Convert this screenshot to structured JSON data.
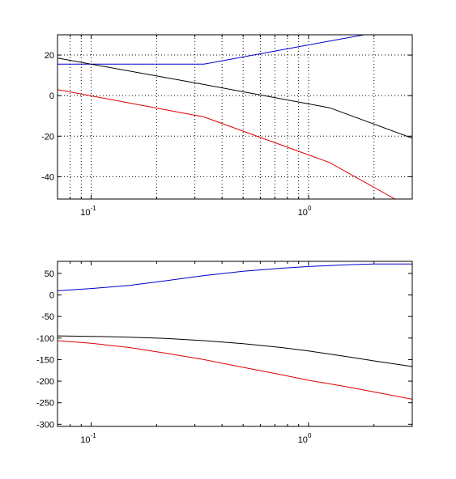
{
  "chart_data": [
    {
      "type": "line",
      "x_scale": "log",
      "xlim": [
        0.07,
        3.0
      ],
      "ylim": [
        -51,
        30
      ],
      "grid": true,
      "x_ticks": [
        {
          "value": 0.1,
          "base": "10",
          "exp": "-1"
        },
        {
          "value": 1.0,
          "base": "10",
          "exp": "0"
        }
      ],
      "y_ticks": [
        {
          "value": 20,
          "label": "20"
        },
        {
          "value": 0,
          "label": "0"
        },
        {
          "value": -20,
          "label": "-20"
        },
        {
          "value": -40,
          "label": "-40"
        }
      ],
      "series": [
        {
          "color": "#0000cc",
          "points": [
            [
              0.07,
              15.5
            ],
            [
              0.1,
              15.5
            ],
            [
              0.33,
              15.5
            ],
            [
              1.0,
              25.0
            ],
            [
              1.8,
              30.0
            ]
          ]
        },
        {
          "color": "#000000",
          "points": [
            [
              0.07,
              18.5
            ],
            [
              0.33,
              5.5
            ],
            [
              1.25,
              -6.0
            ],
            [
              3.0,
              -21.0
            ]
          ]
        },
        {
          "color": "#dd0000",
          "points": [
            [
              0.07,
              3.0
            ],
            [
              0.33,
              -10.5
            ],
            [
              1.25,
              -33.0
            ],
            [
              2.5,
              -51.0
            ]
          ]
        }
      ]
    },
    {
      "type": "line",
      "x_scale": "log",
      "xlim": [
        0.07,
        3.0
      ],
      "ylim": [
        -305,
        78
      ],
      "grid": false,
      "x_ticks": [
        {
          "value": 0.1,
          "base": "10",
          "exp": "-1"
        },
        {
          "value": 1.0,
          "base": "10",
          "exp": "0"
        }
      ],
      "y_ticks": [
        {
          "value": 50,
          "label": "50"
        },
        {
          "value": 0,
          "label": "0"
        },
        {
          "value": -50,
          "label": "-50"
        },
        {
          "value": -100,
          "label": "-100"
        },
        {
          "value": -150,
          "label": "-150"
        },
        {
          "value": -200,
          "label": "-200"
        },
        {
          "value": -250,
          "label": "-250"
        },
        {
          "value": -300,
          "label": "-300"
        }
      ],
      "series": [
        {
          "color": "#0000cc",
          "points": [
            [
              0.07,
              10
            ],
            [
              0.1,
              15
            ],
            [
              0.15,
              22
            ],
            [
              0.22,
              33
            ],
            [
              0.33,
              45
            ],
            [
              0.5,
              55
            ],
            [
              0.75,
              62
            ],
            [
              1.0,
              66
            ],
            [
              1.5,
              70
            ],
            [
              2.0,
              72
            ],
            [
              3.0,
              72
            ]
          ]
        },
        {
          "color": "#000000",
          "points": [
            [
              0.07,
              -95
            ],
            [
              0.1,
              -96
            ],
            [
              0.15,
              -98
            ],
            [
              0.22,
              -101
            ],
            [
              0.33,
              -106
            ],
            [
              0.5,
              -113
            ],
            [
              0.75,
              -122
            ],
            [
              1.0,
              -130
            ],
            [
              1.5,
              -143
            ],
            [
              2.0,
              -153
            ],
            [
              3.0,
              -166
            ]
          ]
        },
        {
          "color": "#dd0000",
          "points": [
            [
              0.07,
              -106
            ],
            [
              0.1,
              -112
            ],
            [
              0.15,
              -122
            ],
            [
              0.22,
              -135
            ],
            [
              0.33,
              -150
            ],
            [
              0.5,
              -168
            ],
            [
              0.75,
              -185
            ],
            [
              1.0,
              -198
            ],
            [
              1.5,
              -213
            ],
            [
              2.0,
              -225
            ],
            [
              3.0,
              -242
            ]
          ]
        }
      ]
    }
  ]
}
